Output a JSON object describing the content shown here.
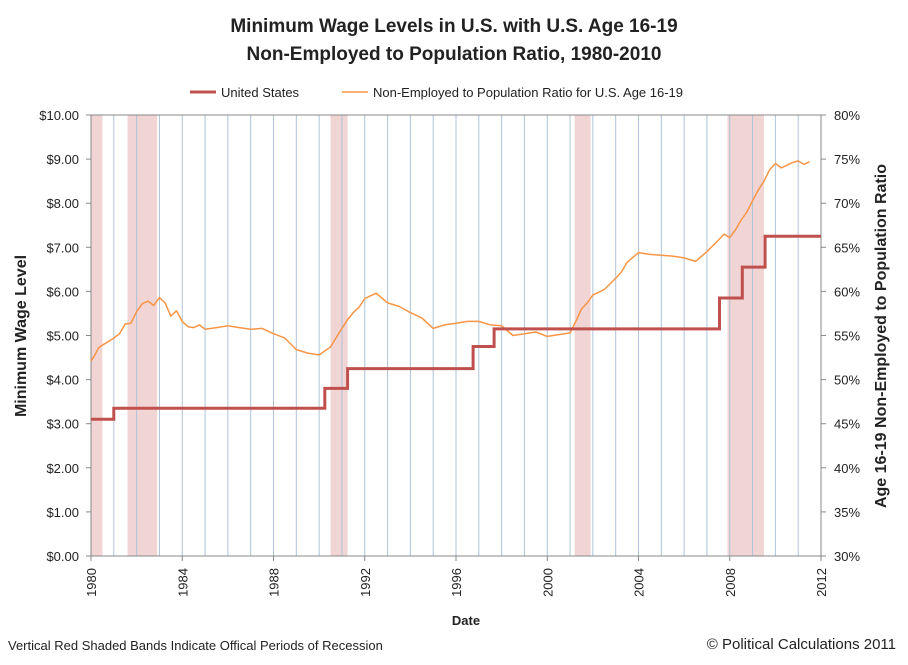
{
  "chart_data": {
    "type": "line",
    "title": "Minimum Wage Levels in U.S. with U.S. Age 16-19",
    "subtitle": "Non-Employed to Population Ratio, 1980-2010",
    "xlabel": "Date",
    "ylabel_left": "Minimum Wage Level",
    "ylabel_right": "Age 16-19 Non-Employed to Population Ratio",
    "xlim": [
      1980,
      2012
    ],
    "ylim_left": [
      0,
      10
    ],
    "ylim_right": [
      30,
      80
    ],
    "x_ticks": [
      "1980",
      "1984",
      "1988",
      "1992",
      "1996",
      "2000",
      "2004",
      "2008",
      "2012"
    ],
    "y_ticks_left": [
      "$0.00",
      "$1.00",
      "$2.00",
      "$3.00",
      "$4.00",
      "$5.00",
      "$6.00",
      "$7.00",
      "$8.00",
      "$9.00",
      "$10.00"
    ],
    "y_ticks_right": [
      "30%",
      "35%",
      "40%",
      "45%",
      "50%",
      "55%",
      "60%",
      "65%",
      "70%",
      "75%",
      "80%"
    ],
    "grid": "vertical yearly lines",
    "legend_position": "top",
    "legend": [
      "United States",
      "Non-Employed to Population Ratio for U.S. Age 16-19"
    ],
    "recessions": [
      [
        1980.0,
        1980.5
      ],
      [
        1981.6,
        1982.9
      ],
      [
        1990.5,
        1991.25
      ],
      [
        2001.2,
        2001.9
      ],
      [
        2007.9,
        2009.5
      ]
    ],
    "series": [
      {
        "name": "United States",
        "axis": "left",
        "color": "#c0504d",
        "step": true,
        "x": [
          1980.0,
          1981.0,
          1990.25,
          1991.25,
          1996.75,
          1997.67,
          2007.55,
          2008.55,
          2009.55,
          2012.0
        ],
        "values": [
          3.1,
          3.35,
          3.8,
          4.25,
          4.75,
          5.15,
          5.85,
          6.55,
          7.25,
          7.25
        ]
      },
      {
        "name": "Non-Employed to Population Ratio for U.S. Age 16-19",
        "axis": "right",
        "color": "#f79646",
        "x": [
          1980.0,
          1980.17,
          1980.33,
          1980.5,
          1980.75,
          1981.0,
          1981.25,
          1981.5,
          1981.75,
          1982.0,
          1982.25,
          1982.5,
          1982.75,
          1983.0,
          1983.25,
          1983.5,
          1983.75,
          1984.0,
          1984.25,
          1984.5,
          1984.75,
          1985.0,
          1985.5,
          1986.0,
          1986.5,
          1987.0,
          1987.5,
          1988.0,
          1988.5,
          1989.0,
          1989.5,
          1990.0,
          1990.5,
          1991.0,
          1991.25,
          1991.5,
          1991.75,
          1992.0,
          1992.25,
          1992.5,
          1993.0,
          1993.5,
          1994.0,
          1994.5,
          1995.0,
          1995.5,
          1996.0,
          1996.5,
          1997.0,
          1997.5,
          1998.0,
          1998.5,
          1999.0,
          1999.5,
          2000.0,
          2000.5,
          2001.0,
          2001.25,
          2001.5,
          2001.75,
          2002.0,
          2002.5,
          2003.0,
          2003.25,
          2003.5,
          2004.0,
          2004.5,
          2005.0,
          2005.5,
          2006.0,
          2006.5,
          2007.0,
          2007.5,
          2007.75,
          2008.0,
          2008.25,
          2008.5,
          2008.75,
          2009.0,
          2009.25,
          2009.5,
          2009.75,
          2010.0,
          2010.25,
          2010.5,
          2010.75,
          2011.0,
          2011.25,
          2011.5
        ],
        "values": [
          52.1,
          52.8,
          53.6,
          53.9,
          54.3,
          54.7,
          55.2,
          56.3,
          56.4,
          57.7,
          58.6,
          58.9,
          58.4,
          59.3,
          58.7,
          57.2,
          57.8,
          56.6,
          56.0,
          55.9,
          56.2,
          55.7,
          55.9,
          56.1,
          55.9,
          55.7,
          55.8,
          55.2,
          54.7,
          53.4,
          53.0,
          52.8,
          53.7,
          55.8,
          56.8,
          57.6,
          58.2,
          59.2,
          59.5,
          59.8,
          58.7,
          58.3,
          57.6,
          57.0,
          55.8,
          56.2,
          56.4,
          56.6,
          56.6,
          56.2,
          56.1,
          55.0,
          55.2,
          55.4,
          54.9,
          55.1,
          55.3,
          56.6,
          58.0,
          58.7,
          59.6,
          60.2,
          61.5,
          62.2,
          63.3,
          64.4,
          64.2,
          64.1,
          64.0,
          63.8,
          63.4,
          64.5,
          65.8,
          66.5,
          66.1,
          67.0,
          68.1,
          69.0,
          70.3,
          71.5,
          72.5,
          73.8,
          74.5,
          74.0,
          74.3,
          74.6,
          74.8,
          74.4,
          74.7
        ]
      }
    ]
  },
  "footer": {
    "note": "Vertical Red Shaded Bands Indicate Offical Periods of Recession",
    "copyright": "© Political Calculations 2011"
  }
}
